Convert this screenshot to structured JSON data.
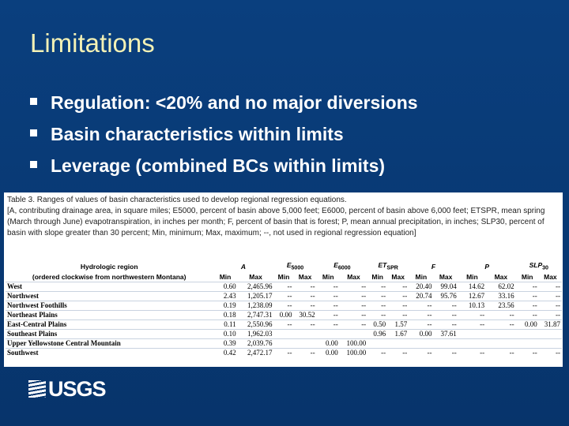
{
  "slide": {
    "title": "Limitations",
    "bullets": [
      "Regulation: <20% and no major diversions",
      "Basin characteristics within limits",
      "Leverage (combined BCs within limits)"
    ],
    "logo": "USGS"
  },
  "table": {
    "caption": "Table 3. Ranges of values of basin characteristics used to develop regional regression equations.",
    "note": "[A, contributing drainage area, in square miles; E5000, percent of basin above 5,000 feet; E6000, percent of basin above 6,000 feet; ETSPR, mean spring (March through June) evapotranspiration, in inches per month; F, percent of basin that is forest; P, mean annual precipitation, in inches; SLP30, percent of basin with slope greater than 30 percent; Min, minimum; Max, maximum; --, not used in regional regression equation]",
    "region_header": [
      "Hydrologic region",
      "(ordered clockwise from northwestern Montana)"
    ],
    "columns": [
      {
        "symbol": "A",
        "sub": null
      },
      {
        "symbol": "E",
        "sub": "5000"
      },
      {
        "symbol": "E",
        "sub": "6000"
      },
      {
        "symbol": "ET",
        "sub": "SPR"
      },
      {
        "symbol": "F",
        "sub": null
      },
      {
        "symbol": "P",
        "sub": null
      },
      {
        "symbol": "SLP",
        "sub": "30"
      }
    ],
    "min_label": "Min",
    "max_label": "Max",
    "rows": [
      {
        "region": "West",
        "cells": [
          "0.60",
          "2,465.96",
          "--",
          "--",
          "--",
          "--",
          "--",
          "--",
          "20.40",
          "99.04",
          "14.62",
          "62.02",
          "--",
          "--"
        ]
      },
      {
        "region": "Northwest",
        "cells": [
          "2.43",
          "1,205.17",
          "--",
          "--",
          "--",
          "--",
          "--",
          "--",
          "20.74",
          "95.76",
          "12.67",
          "33.16",
          "--",
          "--"
        ]
      },
      {
        "region": "Northwest Foothills",
        "cells": [
          "0.19",
          "1,238.09",
          "--",
          "--",
          "--",
          "--",
          "--",
          "--",
          "--",
          "--",
          "10.13",
          "23.56",
          "--",
          "--"
        ]
      },
      {
        "region": "Northeast Plains",
        "cells": [
          "0.18",
          "2,747.31",
          "0.00",
          "30.52",
          "--",
          "--",
          "--",
          "--",
          "--",
          "--",
          "--",
          "--",
          "--",
          "--"
        ]
      },
      {
        "region": "East-Central Plains",
        "cells": [
          "0.11",
          "2,550.96",
          "--",
          "--",
          "--",
          "--",
          "0.50",
          "1.57",
          "--",
          "--",
          "--",
          "--",
          "0.00",
          "31.87"
        ]
      },
      {
        "region": "Southeast Plains",
        "cells": [
          "0.10",
          "1,962.03",
          null,
          null,
          null,
          null,
          "0.96",
          "1.67",
          "0.00",
          "37.61",
          null,
          null,
          null,
          null
        ]
      },
      {
        "region": "Upper Yellowstone Central Mountain",
        "cells": [
          "0.39",
          "2,039.76",
          null,
          null,
          "0.00",
          "100.00",
          null,
          null,
          null,
          null,
          null,
          null,
          null,
          null
        ]
      },
      {
        "region": "Southwest",
        "cells": [
          "0.42",
          "2,472.17",
          "--",
          "--",
          "0.00",
          "100.00",
          "--",
          "--",
          "--",
          "--",
          "--",
          "--",
          "--",
          "--"
        ]
      }
    ]
  }
}
